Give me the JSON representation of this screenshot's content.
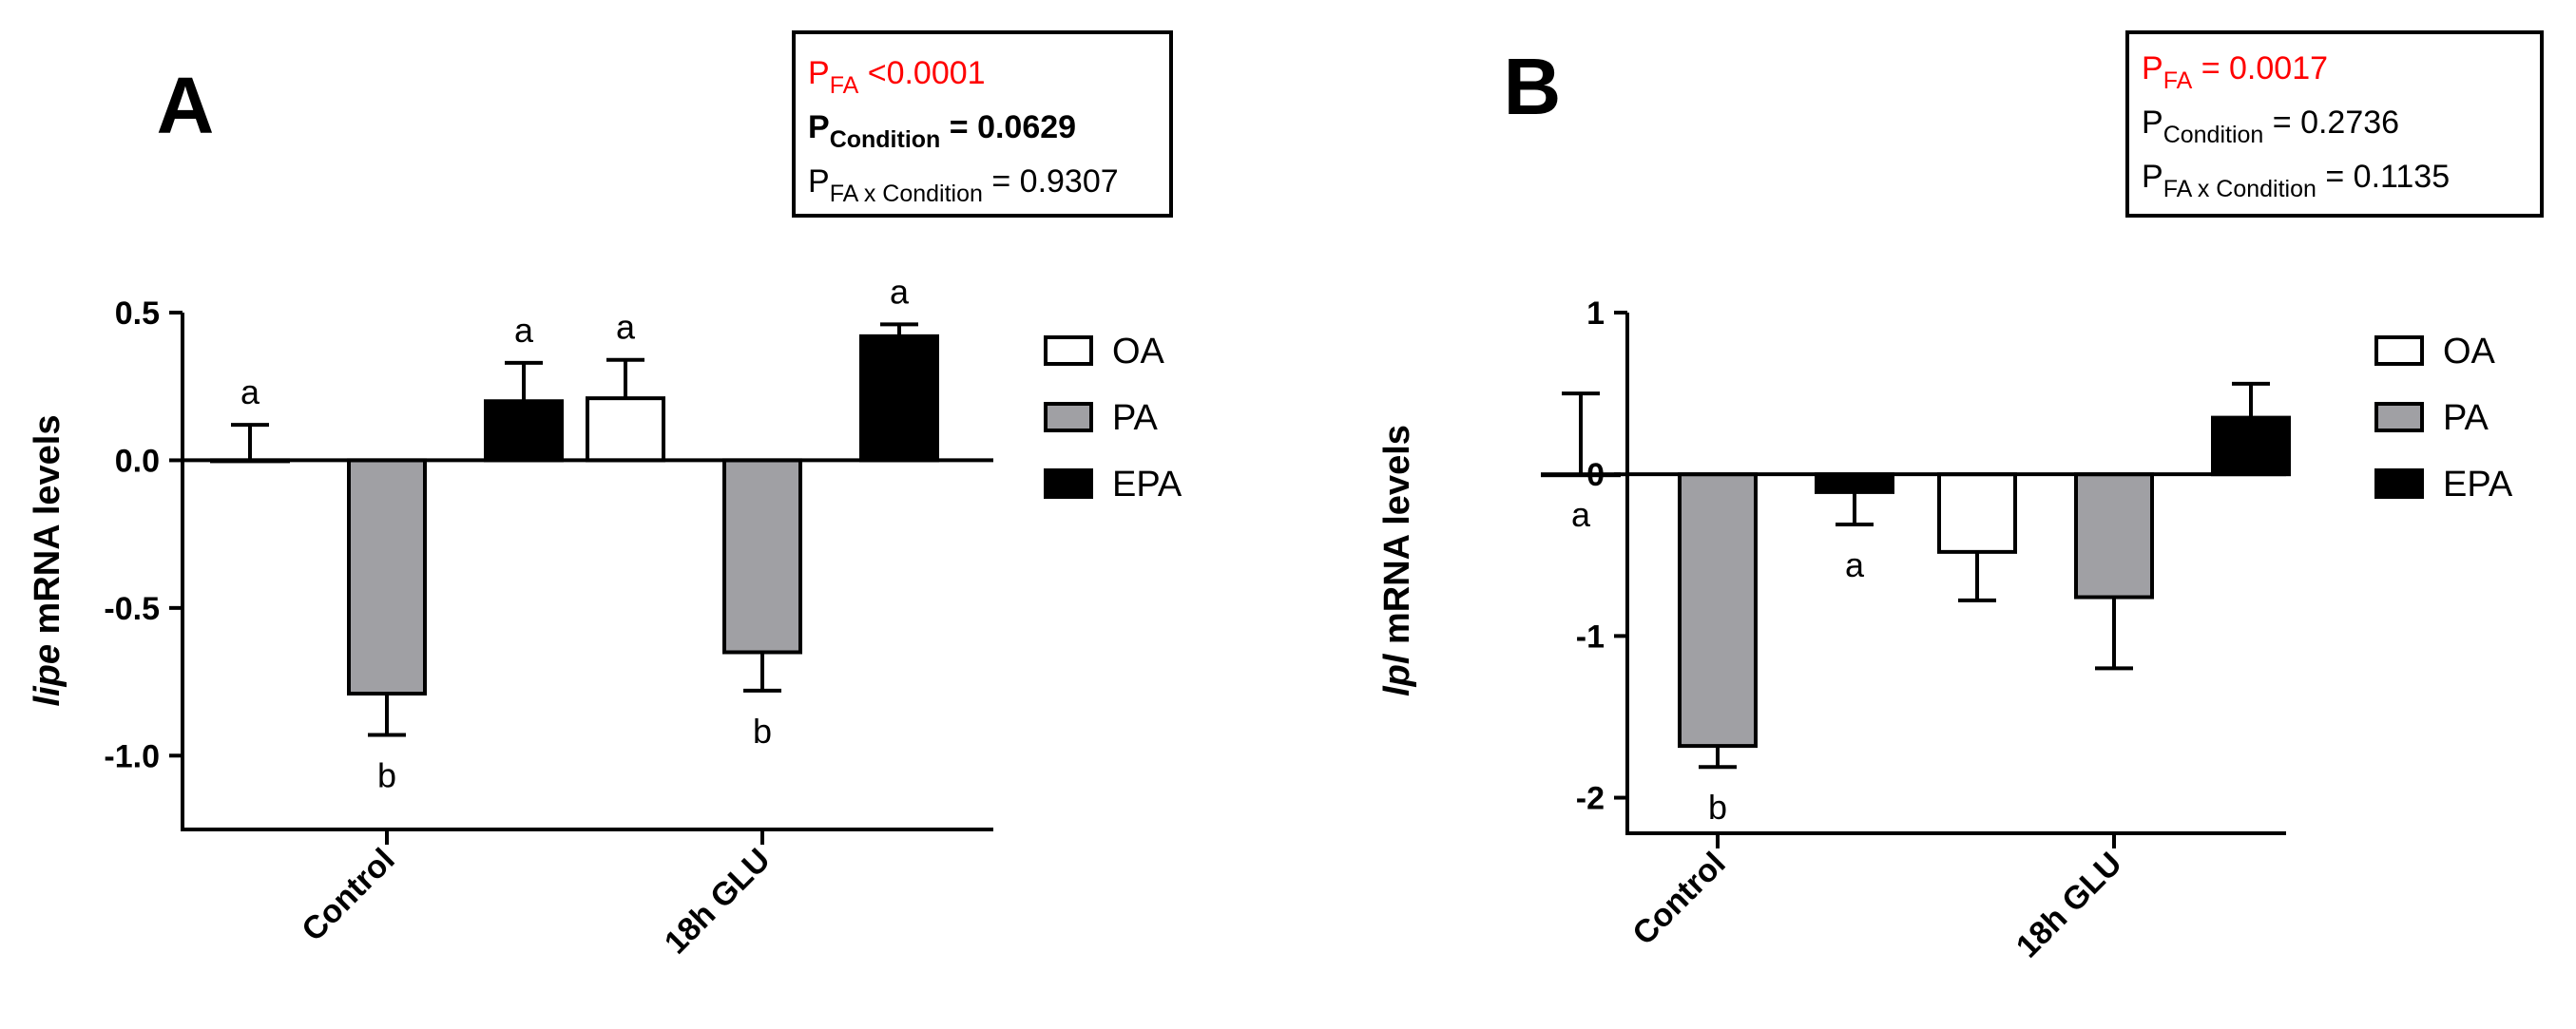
{
  "colors": {
    "axis": "#000000",
    "OA": "#ffffff",
    "PA": "#a0a0a4",
    "EPA": "#000000",
    "stats_highlight": "#ff0000",
    "stats_text": "#000000"
  },
  "chart_data": [
    {
      "panel_label": "A",
      "type": "bar",
      "ylabel_italic": "lipe",
      "ylabel_rest": " mRNA levels",
      "categories": [
        "Control",
        "18h GLU"
      ],
      "ylim": [
        -1.25,
        0.5
      ],
      "yticks": [
        0.5,
        0.0,
        -0.5,
        -1.0
      ],
      "ytick_labels": [
        "0.5",
        "0.0",
        "-0.5",
        "-1.0"
      ],
      "series": [
        {
          "name": "OA",
          "values": [
            0.0,
            0.21
          ],
          "errors": [
            0.12,
            0.13
          ]
        },
        {
          "name": "PA",
          "values": [
            -0.79,
            -0.65
          ],
          "errors": [
            0.14,
            0.13
          ]
        },
        {
          "name": "EPA",
          "values": [
            0.2,
            0.42
          ],
          "errors": [
            0.13,
            0.04
          ]
        }
      ],
      "letters": [
        {
          "category": 0,
          "series": 0,
          "text": "a",
          "position": "above"
        },
        {
          "category": 0,
          "series": 1,
          "text": "b",
          "position": "below"
        },
        {
          "category": 0,
          "series": 2,
          "text": "a",
          "position": "above"
        },
        {
          "category": 1,
          "series": 0,
          "text": "a",
          "position": "above"
        },
        {
          "category": 1,
          "series": 1,
          "text": "b",
          "position": "below"
        },
        {
          "category": 1,
          "series": 2,
          "text": "a",
          "position": "above"
        }
      ],
      "legend": [
        "OA",
        "PA",
        "EPA"
      ],
      "legend_position": "right",
      "stats": [
        {
          "main": "P",
          "sub": "FA",
          "rest": " <0.0001",
          "color": "#ff0000",
          "bold": false
        },
        {
          "main": "P",
          "sub": "Condition",
          "rest": " = 0.0629",
          "color": "#000000",
          "bold": true
        },
        {
          "main": "P",
          "sub": "FA x Condition",
          "rest": " = 0.9307",
          "color": "#000000",
          "bold": false
        }
      ],
      "grid": false
    },
    {
      "panel_label": "B",
      "type": "bar",
      "ylabel_italic": "lpl",
      "ylabel_rest": " mRNA levels",
      "categories": [
        "Control",
        "18h GLU"
      ],
      "ylim": [
        -2.22,
        1.0
      ],
      "yticks": [
        1,
        0,
        -1,
        -2
      ],
      "ytick_labels": [
        "1",
        "0",
        "-1",
        "-2"
      ],
      "series": [
        {
          "name": "OA",
          "values": [
            0.0,
            -0.48
          ],
          "errors": [
            0.5,
            0.3
          ]
        },
        {
          "name": "PA",
          "values": [
            -1.68,
            -0.76
          ],
          "errors": [
            0.13,
            0.44
          ]
        },
        {
          "name": "EPA",
          "values": [
            -0.11,
            0.35
          ],
          "errors": [
            0.2,
            0.21
          ]
        }
      ],
      "letters": [
        {
          "category": 0,
          "series": 0,
          "text": "a",
          "position": "below"
        },
        {
          "category": 0,
          "series": 1,
          "text": "b",
          "position": "below"
        },
        {
          "category": 0,
          "series": 2,
          "text": "a",
          "position": "below"
        }
      ],
      "legend": [
        "OA",
        "PA",
        "EPA"
      ],
      "legend_position": "right",
      "stats": [
        {
          "main": "P",
          "sub": "FA",
          "rest": " = 0.0017",
          "color": "#ff0000",
          "bold": false
        },
        {
          "main": "P",
          "sub": "Condition",
          "rest": " = 0.2736",
          "color": "#000000",
          "bold": false
        },
        {
          "main": "P",
          "sub": "FA x Condition",
          "rest": " = 0.1135",
          "color": "#000000",
          "bold": false
        }
      ],
      "grid": false
    }
  ]
}
